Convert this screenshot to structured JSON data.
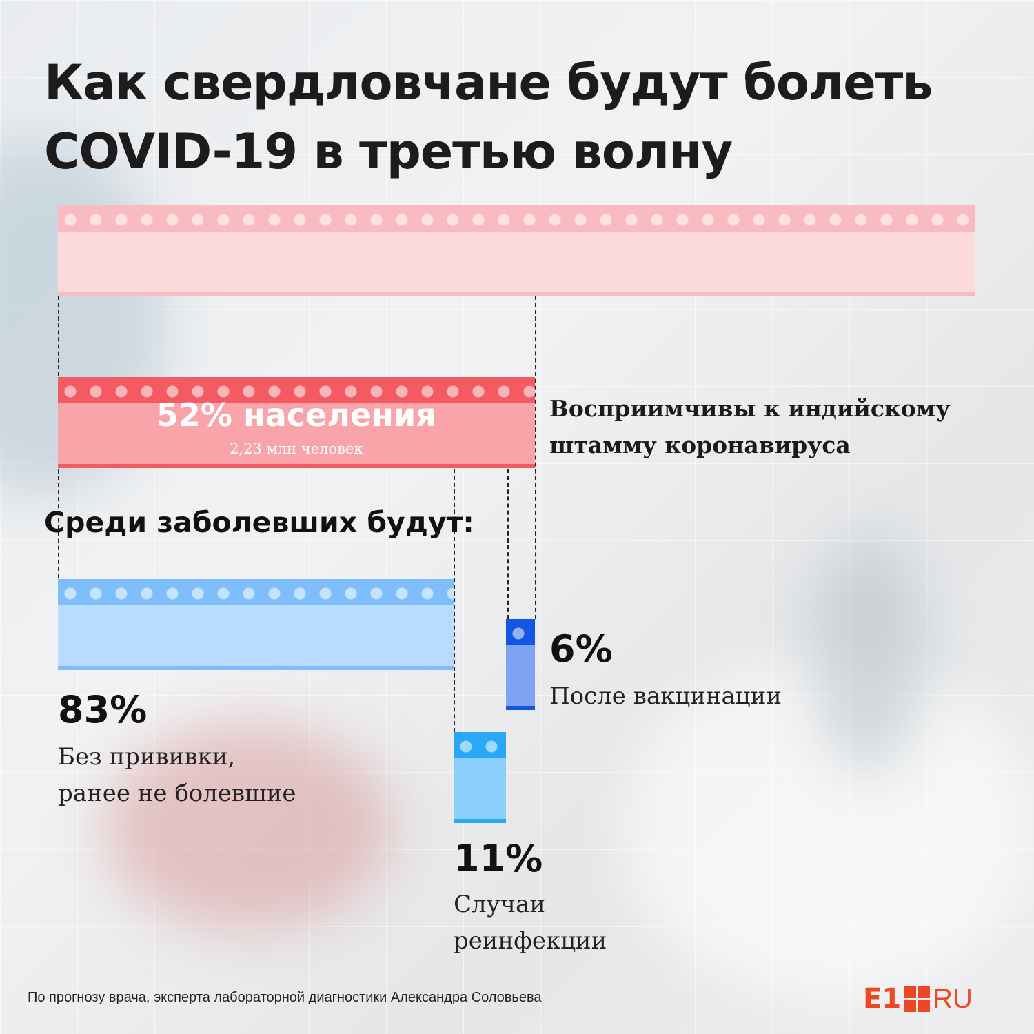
{
  "title_line1": "Как свердловчане будут болеть",
  "title_line2": "COVID-19 в третью волну",
  "chart_data": {
    "type": "bar",
    "total": {
      "values": [
        100
      ]
    },
    "susceptible": {
      "value": 52,
      "label": "52% населения",
      "sublabel": "2,23 млн человек",
      "description_line1": "Восприимчивы к индийскому",
      "description_line2": "штамму коронавируса"
    },
    "among_sick_heading": "Среди заболевших будут:",
    "breakdown": [
      {
        "value": 83,
        "percent_label": "83%",
        "label_line1": "Без прививки,",
        "label_line2": "ранее не болевшие"
      },
      {
        "value": 11,
        "percent_label": "11%",
        "label_line1": "Случаи",
        "label_line2": "реинфекции"
      },
      {
        "value": 6,
        "percent_label": "6%",
        "label_line1": "После вакцинации",
        "label_line2": ""
      }
    ],
    "colors": {
      "total": "#f8bcc0",
      "susceptible": "#f35a62",
      "unvaccinated": "#7ebefd",
      "reinfection": "#29a8f7",
      "vaccinated": "#1555e6"
    }
  },
  "source": "По прогнозу врача, эксперта лабораторной диагностики Александра Соловьева",
  "logo": {
    "left": "E1",
    "right": "RU"
  }
}
